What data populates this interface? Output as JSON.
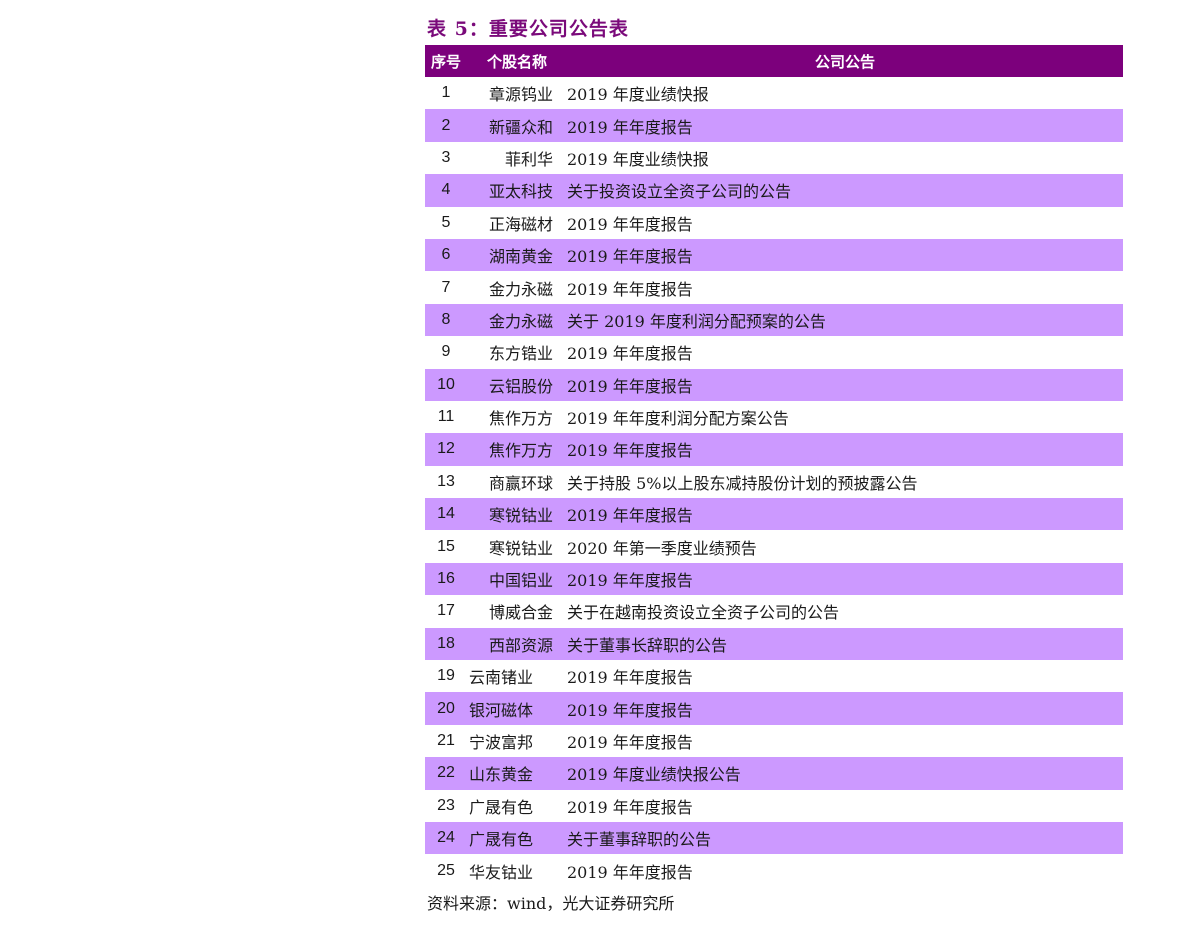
{
  "title": "表 5：重要公司公告表",
  "header": {
    "col_no": "序号",
    "col_stock": "个股名称",
    "col_notice": "公司公告"
  },
  "rows": [
    {
      "no": "1",
      "stock": "章源钨业",
      "notice": "2019 年度业绩快报"
    },
    {
      "no": "2",
      "stock": "新疆众和",
      "notice": "2019 年年度报告"
    },
    {
      "no": "3",
      "stock": "菲利华",
      "notice": "2019 年度业绩快报"
    },
    {
      "no": "4",
      "stock": "亚太科技",
      "notice": "关于投资设立全资子公司的公告"
    },
    {
      "no": "5",
      "stock": "正海磁材",
      "notice": "2019 年年度报告"
    },
    {
      "no": "6",
      "stock": "湖南黄金",
      "notice": "2019 年年度报告"
    },
    {
      "no": "7",
      "stock": "金力永磁",
      "notice": "2019 年年度报告"
    },
    {
      "no": "8",
      "stock": "金力永磁",
      "notice": "关于 2019 年度利润分配预案的公告"
    },
    {
      "no": "9",
      "stock": "东方锆业",
      "notice": "2019 年年度报告"
    },
    {
      "no": "10",
      "stock": "云铝股份",
      "notice": "2019 年年度报告"
    },
    {
      "no": "11",
      "stock": "焦作万方",
      "notice": "2019 年年度利润分配方案公告"
    },
    {
      "no": "12",
      "stock": "焦作万方",
      "notice": "2019 年年度报告"
    },
    {
      "no": "13",
      "stock": "商赢环球",
      "notice": "关于持股 5%以上股东减持股份计划的预披露公告"
    },
    {
      "no": "14",
      "stock": "寒锐钴业",
      "notice": "2019 年年度报告"
    },
    {
      "no": "15",
      "stock": "寒锐钴业",
      "notice": "2020 年第一季度业绩预告"
    },
    {
      "no": "16",
      "stock": "中国铝业",
      "notice": "2019 年年度报告"
    },
    {
      "no": "17",
      "stock": "博威合金",
      "notice": "关于在越南投资设立全资子公司的公告"
    },
    {
      "no": "18",
      "stock": "西部资源",
      "notice": "关于董事长辞职的公告"
    },
    {
      "no": "19",
      "stock": "云南锗业",
      "notice": "2019 年年度报告"
    },
    {
      "no": "20",
      "stock": "银河磁体",
      "notice": "2019 年年度报告"
    },
    {
      "no": "21",
      "stock": "宁波富邦",
      "notice": "2019 年年度报告"
    },
    {
      "no": "22",
      "stock": "山东黄金",
      "notice": "2019 年度业绩快报公告"
    },
    {
      "no": "23",
      "stock": "广晟有色",
      "notice": "2019 年年度报告"
    },
    {
      "no": "24",
      "stock": "广晟有色",
      "notice": "关于董事辞职的公告"
    },
    {
      "no": "25",
      "stock": "华友钴业",
      "notice": "2019 年年度报告"
    }
  ],
  "source": "资料来源：wind，光大证券研究所",
  "colors": {
    "header_bg": "#7c007c",
    "band_bg": "#cc99ff",
    "title": "#7a0a7a"
  }
}
